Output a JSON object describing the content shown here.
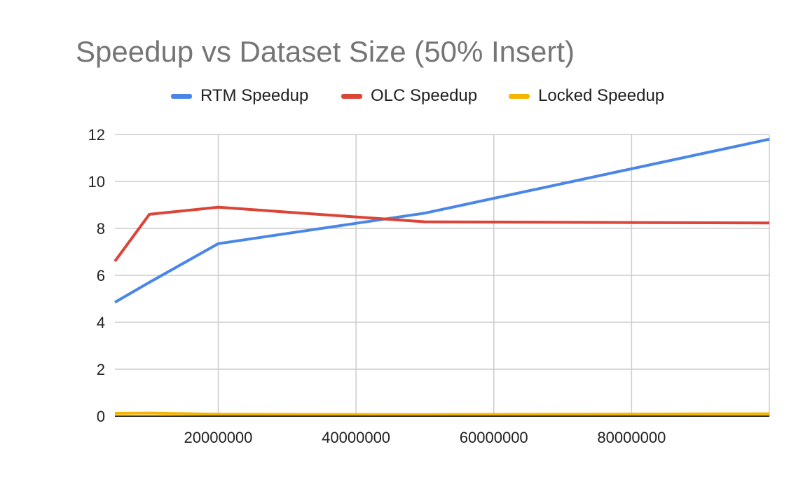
{
  "chart_data": {
    "type": "line",
    "title": "Speedup vs Dataset Size (50% Insert)",
    "xlabel": "",
    "ylabel": "",
    "x": [
      5000000,
      10000000,
      20000000,
      50000000,
      100000000
    ],
    "x_ticks": [
      "20000000",
      "40000000",
      "60000000",
      "80000000"
    ],
    "x_tick_values": [
      20000000,
      40000000,
      60000000,
      80000000
    ],
    "y_ticks": [
      "0",
      "2",
      "4",
      "6",
      "8",
      "10",
      "12"
    ],
    "y_tick_values": [
      0,
      2,
      4,
      6,
      8,
      10,
      12
    ],
    "xlim": [
      5000000,
      100000000
    ],
    "ylim": [
      0,
      12
    ],
    "grid": true,
    "legend_position": "top",
    "series": [
      {
        "name": "RTM Speedup",
        "color": "#4a86e8",
        "values": [
          4.85,
          5.7,
          7.35,
          8.65,
          11.8
        ]
      },
      {
        "name": "OLC Speedup",
        "color": "#db4437",
        "values": [
          6.6,
          8.6,
          8.9,
          8.28,
          8.23
        ]
      },
      {
        "name": "Locked Speedup",
        "color": "#f4b400",
        "values": [
          0.12,
          0.13,
          0.08,
          0.07,
          0.1
        ]
      }
    ]
  }
}
